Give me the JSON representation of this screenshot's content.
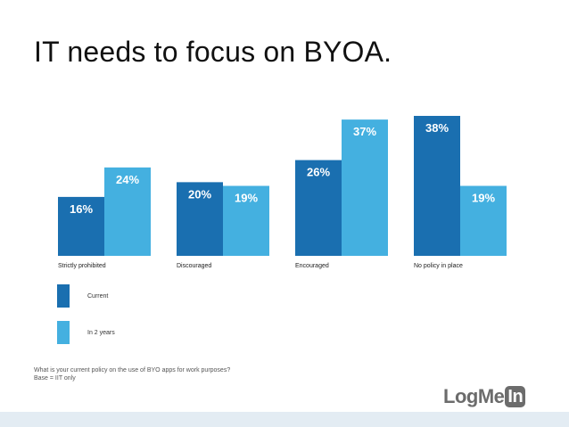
{
  "title": "IT needs to focus on BYOA.",
  "chart_data": {
    "type": "bar",
    "categories": [
      "Strictly prohibited",
      "Discouraged",
      "Encouraged",
      "No policy in place"
    ],
    "series": [
      {
        "name": "Current",
        "values": [
          16,
          20,
          26,
          38
        ],
        "labels": [
          "16%",
          "20%",
          "26%",
          "38%"
        ]
      },
      {
        "name": "In 2 years",
        "values": [
          24,
          19,
          37,
          19
        ],
        "labels": [
          "24%",
          "19%",
          "37%",
          "19%"
        ]
      }
    ],
    "ylim": [
      0,
      40
    ],
    "grid": false,
    "legend_position": "bottom-left"
  },
  "colors": {
    "current": "#1a6fb0",
    "in_2_years": "#44b0e0",
    "value_label_text": "#ffffff",
    "category_text": "#222222"
  },
  "legend": [
    {
      "label": "Current",
      "color": "#1a6fb0"
    },
    {
      "label": "In 2 years",
      "color": "#44b0e0"
    }
  ],
  "footnote": {
    "line1": "What is your current policy on the use of BYO apps for work purposes?",
    "line2": "Base = IIT only"
  },
  "logo": {
    "text": "LogMe",
    "box_text": "In"
  }
}
